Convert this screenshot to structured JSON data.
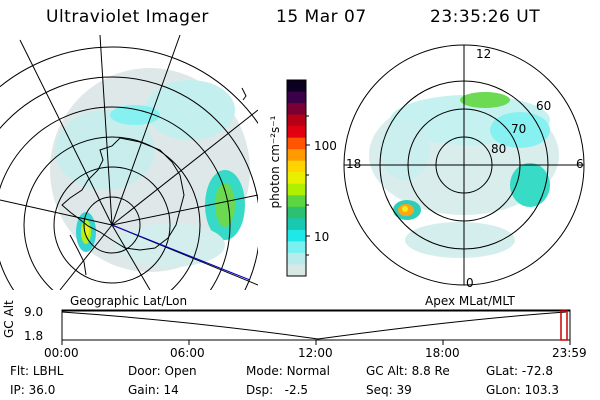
{
  "header": {
    "instrument": "Ultraviolet Imager",
    "date": "15 Mar 07",
    "time": "23:35:26 UT"
  },
  "left_panel": {
    "caption": "Geographic Lat/Lon"
  },
  "right_panel": {
    "caption": "Apex MLat/MLT",
    "mlt_labels": {
      "top": "12",
      "left": "18",
      "right": "6",
      "bottom": "0"
    },
    "lat_labels": [
      "60",
      "70",
      "80"
    ]
  },
  "colorbar": {
    "unit_label": "photon cm⁻²s⁻¹",
    "ticks": [
      "100",
      "10"
    ],
    "colors": [
      "#0b0022",
      "#3a0048",
      "#7a0033",
      "#b50018",
      "#e10012",
      "#ff5500",
      "#ff9a00",
      "#ffd400",
      "#e8f000",
      "#aef000",
      "#5cd640",
      "#2cc070",
      "#18c8b0",
      "#1ee8e8",
      "#7bf0f0",
      "#b8ecec",
      "#d8e8e4"
    ]
  },
  "timeline": {
    "axis_label": "GC Alt",
    "y_ticks": [
      "9.0",
      "1.8"
    ],
    "x_ticks": [
      "00:00",
      "06:00",
      "12:00",
      "18:00",
      "23:59"
    ],
    "marker_color": "#cc0000"
  },
  "status": {
    "row1": [
      {
        "label": "Flt:",
        "value": "LBHL"
      },
      {
        "label": "Door:",
        "value": "Open"
      },
      {
        "label": "Mode:",
        "value": "Normal"
      },
      {
        "label": "GC Alt:",
        "value": "8.8 Re"
      },
      {
        "label": "GLat:",
        "value": "-72.8"
      }
    ],
    "row2": [
      {
        "label": "IP:",
        "value": "36.0"
      },
      {
        "label": "Gain:",
        "value": "14"
      },
      {
        "label": "Dsp:",
        "value": "-2.5"
      },
      {
        "label": "Seq:",
        "value": "39"
      },
      {
        "label": "GLon:",
        "value": "103.3"
      }
    ]
  }
}
